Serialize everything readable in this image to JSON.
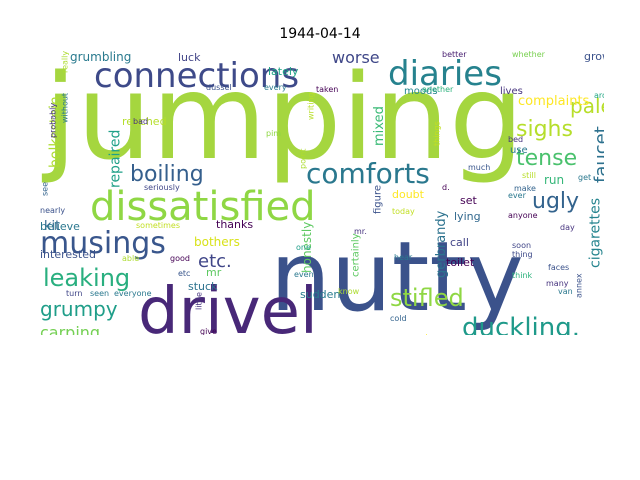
{
  "title": "1944-04-14",
  "words": [
    {
      "text": "jumping",
      "color": "#a5d63f",
      "rotate": false
    },
    {
      "text": "nutty",
      "color": "#3b528b",
      "rotate": false
    },
    {
      "text": "drivel",
      "color": "#482878",
      "rotate": false
    },
    {
      "text": "dissatisfied",
      "color": "#8fd744",
      "rotate": false
    },
    {
      "text": "connections",
      "color": "#3e4a89",
      "rotate": false
    },
    {
      "text": "diaries",
      "color": "#26828e",
      "rotate": false
    },
    {
      "text": "musings",
      "color": "#39568c",
      "rotate": false
    },
    {
      "text": "comforts",
      "color": "#2a788e",
      "rotate": false
    },
    {
      "text": "duckling.",
      "color": "#1f9a8a",
      "rotate": false
    },
    {
      "text": "leaking",
      "color": "#29af7f",
      "rotate": false
    },
    {
      "text": "stifled",
      "color": "#8fd744",
      "rotate": false
    },
    {
      "text": "boiling",
      "color": "#355f8d",
      "rotate": false
    },
    {
      "text": "grumpy",
      "color": "#1f9e89",
      "rotate": false
    },
    {
      "text": "ugly",
      "color": "#33638d",
      "rotate": false
    },
    {
      "text": "sighs",
      "color": "#b5de2b",
      "rotate": false
    },
    {
      "text": "tense",
      "color": "#4ac16d",
      "rotate": false
    },
    {
      "text": "pale",
      "color": "#b8de29",
      "rotate": false
    },
    {
      "text": "faucet",
      "color": "#2d718e",
      "rotate": true
    },
    {
      "text": "etc.",
      "color": "#404688",
      "rotate": false
    },
    {
      "text": "carping",
      "color": "#75d054",
      "rotate": false
    },
    {
      "text": "worse",
      "color": "#3f4788",
      "rotate": false
    },
    {
      "text": "repaired",
      "color": "#1fa088",
      "rotate": true
    },
    {
      "text": "bolkestein",
      "color": "#addc30",
      "rotate": true
    },
    {
      "text": "cigarettes",
      "color": "#25848e",
      "rotate": true
    },
    {
      "text": "complaints",
      "color": "#fde725",
      "rotate": false
    },
    {
      "text": "mixed",
      "color": "#3aba76",
      "rotate": true
    },
    {
      "text": "gerbrandy",
      "color": "#2c728e",
      "rotate": true
    },
    {
      "text": "honestly",
      "color": "#5ec962",
      "rotate": true
    },
    {
      "text": "bothers",
      "color": "#d8e219",
      "rotate": false
    },
    {
      "text": "run",
      "color": "#35b779",
      "rotate": false
    },
    {
      "text": "kit",
      "color": "#31668e",
      "rotate": false
    },
    {
      "text": "grumbling",
      "color": "#297a8e",
      "rotate": false
    },
    {
      "text": "growing",
      "color": "#3b528b",
      "rotate": false
    },
    {
      "text": "moods",
      "color": "#24868e",
      "rotate": false
    },
    {
      "text": "lives",
      "color": "#46337e",
      "rotate": false
    },
    {
      "text": "figure",
      "color": "#3b528b",
      "rotate": true
    },
    {
      "text": "certainly",
      "color": "#5ec962",
      "rotate": true
    },
    {
      "text": "set",
      "color": "#440154",
      "rotate": false
    },
    {
      "text": "lying",
      "color": "#31688e",
      "rotate": false
    },
    {
      "text": "doubt",
      "color": "#fde725",
      "rotate": false
    },
    {
      "text": "believe",
      "color": "#2a778e",
      "rotate": false
    },
    {
      "text": "interested",
      "color": "#3b528b",
      "rotate": false
    },
    {
      "text": "thanks",
      "color": "#440154",
      "rotate": false
    },
    {
      "text": "call",
      "color": "#414487",
      "rotate": false
    },
    {
      "text": "toilet",
      "color": "#440154",
      "rotate": false
    },
    {
      "text": "sudden",
      "color": "#287c8e",
      "rotate": false
    },
    {
      "text": "stuck",
      "color": "#2c728e",
      "rotate": false
    },
    {
      "text": "mr",
      "color": "#5ec962",
      "rotate": false
    },
    {
      "text": "luck",
      "color": "#414487",
      "rotate": false
    },
    {
      "text": "lately",
      "color": "#20a386",
      "rotate": false
    },
    {
      "text": "reached",
      "color": "#b5de2b",
      "rotate": false
    },
    {
      "text": "dussel",
      "color": "#3b528b",
      "rotate": false
    },
    {
      "text": "every",
      "color": "#2a788e",
      "rotate": false
    },
    {
      "text": "taken",
      "color": "#440154",
      "rotate": false
    },
    {
      "text": "another",
      "color": "#2db27d",
      "rotate": false
    },
    {
      "text": "better",
      "color": "#481f70",
      "rotate": false
    },
    {
      "text": "whether",
      "color": "#7ad151",
      "rotate": false
    },
    {
      "text": "around",
      "color": "#22a785",
      "rotate": false
    },
    {
      "text": "bed",
      "color": "#46337e",
      "rotate": false
    },
    {
      "text": "use",
      "color": "#2a788e",
      "rotate": false
    },
    {
      "text": "really",
      "color": "#addc30",
      "rotate": true
    },
    {
      "text": "probably",
      "color": "#463480",
      "rotate": true
    },
    {
      "text": "without",
      "color": "#2a788e",
      "rotate": true
    },
    {
      "text": "bad",
      "color": "#46337e",
      "rotate": false
    },
    {
      "text": "pim",
      "color": "#8fd744",
      "rotate": false
    },
    {
      "text": "writing",
      "color": "#b8de29",
      "rotate": true
    },
    {
      "text": "things",
      "color": "#c2df23",
      "rotate": true
    },
    {
      "text": "much",
      "color": "#39568c",
      "rotate": false
    },
    {
      "text": "still",
      "color": "#b8de29",
      "rotate": false
    },
    {
      "text": "get",
      "color": "#2a788e",
      "rotate": false
    },
    {
      "text": "make",
      "color": "#33638d",
      "rotate": false
    },
    {
      "text": "anyone",
      "color": "#440154",
      "rotate": false
    },
    {
      "text": "day",
      "color": "#46337e",
      "rotate": false
    },
    {
      "text": "d.",
      "color": "#440154",
      "rotate": false
    },
    {
      "text": "today",
      "color": "#c2df23",
      "rotate": false
    },
    {
      "text": "seriously",
      "color": "#404688",
      "rotate": false
    },
    {
      "text": "see",
      "color": "#33638d",
      "rotate": true
    },
    {
      "text": "nearly",
      "color": "#3b528b",
      "rotate": false
    },
    {
      "text": "sometimes",
      "color": "#c2df23",
      "rotate": false
    },
    {
      "text": "point",
      "color": "#addc30",
      "rotate": true
    },
    {
      "text": "one",
      "color": "#1f9e89",
      "rotate": false
    },
    {
      "text": "mr.",
      "color": "#46337e",
      "rotate": false
    },
    {
      "text": "hear",
      "color": "#2a788e",
      "rotate": false
    },
    {
      "text": "ever",
      "color": "#2a788e",
      "rotate": false
    },
    {
      "text": "soon",
      "color": "#404688",
      "rotate": false
    },
    {
      "text": "thing",
      "color": "#3e4a89",
      "rotate": false
    },
    {
      "text": "think",
      "color": "#2db27d",
      "rotate": false
    },
    {
      "text": "faces",
      "color": "#3b528b",
      "rotate": false
    },
    {
      "text": "many",
      "color": "#46337e",
      "rotate": false
    },
    {
      "text": "van",
      "color": "#2a788e",
      "rotate": false
    },
    {
      "text": "annex",
      "color": "#3b528b",
      "rotate": true
    },
    {
      "text": "able",
      "color": "#addc30",
      "rotate": false
    },
    {
      "text": "good",
      "color": "#440154",
      "rotate": false
    },
    {
      "text": "etc",
      "color": "#39568c",
      "rotate": false
    },
    {
      "text": "turn",
      "color": "#404688",
      "rotate": false
    },
    {
      "text": "seen",
      "color": "#2a788e",
      "rotate": false
    },
    {
      "text": "everyone",
      "color": "#2a788e",
      "rotate": false
    },
    {
      "text": "little",
      "color": "#46337e",
      "rotate": true
    },
    {
      "text": "give",
      "color": "#440154",
      "rotate": false
    },
    {
      "text": "even",
      "color": "#2a788e",
      "rotate": false
    },
    {
      "text": "know",
      "color": "#addc30",
      "rotate": false
    },
    {
      "text": "cold",
      "color": "#33638d",
      "rotate": false
    },
    {
      "text": "example",
      "color": "#fde725",
      "rotate": false
    },
    {
      "text": "mrs.",
      "color": "#440154",
      "rotate": false
    }
  ]
}
